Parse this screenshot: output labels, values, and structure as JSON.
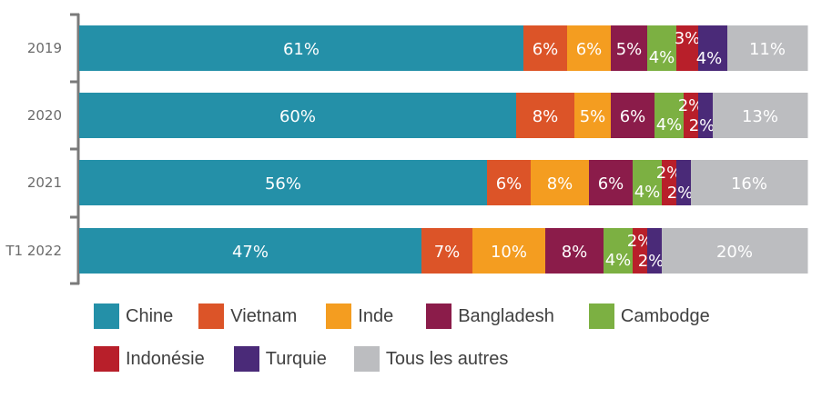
{
  "chart_data": {
    "type": "bar",
    "orientation": "horizontal",
    "stacked": "100%",
    "categories": [
      "2019",
      "2020",
      "2021",
      "T1 2022"
    ],
    "series": [
      {
        "name": "Chine",
        "color": "#2490a8",
        "values": [
          61,
          60,
          56,
          47
        ]
      },
      {
        "name": "Vietnam",
        "color": "#dc5428",
        "values": [
          6,
          8,
          6,
          7
        ]
      },
      {
        "name": "Inde",
        "color": "#f49d20",
        "values": [
          6,
          5,
          8,
          10
        ]
      },
      {
        "name": "Bangladesh",
        "color": "#8b1c4a",
        "values": [
          5,
          6,
          6,
          8
        ]
      },
      {
        "name": "Cambodge",
        "color": "#7cb042",
        "values": [
          4,
          4,
          4,
          4
        ]
      },
      {
        "name": "Indonésie",
        "color": "#b81f2a",
        "values": [
          3,
          2,
          2,
          2
        ]
      },
      {
        "name": "Turquie",
        "color": "#4a2a78",
        "values": [
          4,
          2,
          2,
          2
        ]
      },
      {
        "name": "Tous les autres",
        "color": "#bcbdc0",
        "values": [
          11,
          13,
          16,
          20
        ]
      }
    ],
    "value_suffix": "%",
    "xlim": [
      0,
      100
    ],
    "legend_position": "bottom",
    "grid": false
  }
}
